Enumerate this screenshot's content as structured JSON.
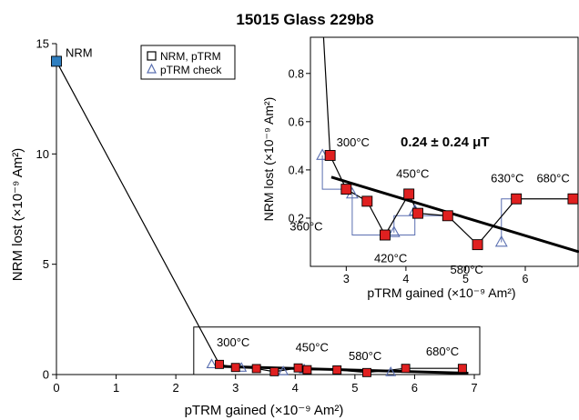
{
  "chart_data": [
    {
      "type": "scatter",
      "title": "15015 Glass 229b8",
      "xlabel": "pTRM gained (×10⁻⁹ Am²)",
      "ylabel": "NRM lost (×10⁻⁹ Am²)",
      "xlim": [
        0,
        7
      ],
      "ylim": [
        0,
        15
      ],
      "x_ticks": [
        "0",
        "1",
        "2",
        "3",
        "4",
        "5",
        "6",
        "7"
      ],
      "y_ticks": [
        "0",
        "5",
        "10",
        "15"
      ],
      "legend": {
        "placement": "top-center",
        "entries": [
          "NRM, pTRM",
          "pTRM check"
        ]
      },
      "series": [
        {
          "name": "NRM, pTRM",
          "x": [
            0.0,
            2.73,
            3.0,
            3.35,
            3.65,
            4.05,
            4.2,
            4.7,
            5.2,
            5.85,
            6.8
          ],
          "y": [
            14.2,
            0.46,
            0.32,
            0.27,
            0.13,
            0.3,
            0.22,
            0.21,
            0.09,
            0.28,
            0.28
          ],
          "marker": "square",
          "color": "#e02020",
          "first_point_color": "#2f7fc0"
        },
        {
          "name": "pTRM check",
          "x": [
            2.6,
            3.1,
            3.8,
            4.15,
            5.6
          ],
          "y": [
            0.46,
            0.3,
            0.14,
            0.23,
            0.1
          ],
          "marker": "triangle",
          "color": "#5a6fb0"
        }
      ],
      "fit_line": {
        "x": [
          2.75,
          6.9
        ],
        "y": [
          0.37,
          0.06
        ],
        "color": "#000000"
      },
      "annotations": [
        {
          "text": "NRM",
          "x": 0.0,
          "y": 14.2
        },
        {
          "text": "300°C",
          "x": 2.73,
          "y": 0.46
        },
        {
          "text": "450°C",
          "x": 4.05,
          "y": 0.3
        },
        {
          "text": "580°C",
          "x": 5.2,
          "y": 0.09
        },
        {
          "text": "680°C",
          "x": 6.8,
          "y": 0.28
        }
      ],
      "zoom_box": {
        "x": [
          2.3,
          7.0
        ],
        "y": [
          0.0,
          1.0
        ]
      }
    },
    {
      "type": "scatter",
      "title": "",
      "xlabel": "pTRM gained (×10⁻⁹ Am²)",
      "ylabel": "NRM lost (×10⁻⁹ Am²)",
      "xlim": [
        2.4,
        6.9
      ],
      "ylim": [
        0,
        0.95
      ],
      "x_ticks": [
        "3",
        "4",
        "5",
        "6"
      ],
      "y_ticks": [
        "0.2",
        "0.4",
        "0.6",
        "0.8"
      ],
      "result": "0.24 ± 0.24 μT",
      "series": [
        {
          "name": "NRM, pTRM",
          "x": [
            2.73,
            3.0,
            3.35,
            3.65,
            4.05,
            4.2,
            4.7,
            5.2,
            5.85,
            6.8
          ],
          "y": [
            0.46,
            0.32,
            0.27,
            0.13,
            0.3,
            0.22,
            0.21,
            0.09,
            0.28,
            0.28
          ],
          "marker": "square",
          "color": "#e02020"
        },
        {
          "name": "pTRM check",
          "x": [
            2.6,
            3.1,
            3.8,
            4.15,
            5.6
          ],
          "y": [
            0.46,
            0.3,
            0.14,
            0.23,
            0.1
          ],
          "marker": "triangle",
          "color": "#5a6fb0"
        }
      ],
      "check_links": [
        {
          "from": [
            2.6,
            0.46
          ],
          "via": [
            2.6,
            0.32
          ],
          "to": [
            3.0,
            0.32
          ]
        },
        {
          "from": [
            3.1,
            0.3
          ],
          "via": [
            3.1,
            0.13
          ],
          "to": [
            3.65,
            0.13
          ]
        },
        {
          "from": [
            3.8,
            0.14
          ],
          "via": [
            3.8,
            0.21
          ],
          "to": [
            4.7,
            0.21
          ]
        },
        {
          "from": [
            4.15,
            0.23
          ],
          "via": [
            4.15,
            0.13
          ],
          "to": [
            3.65,
            0.13
          ]
        },
        {
          "from": [
            5.6,
            0.1
          ],
          "via": [
            5.6,
            0.28
          ],
          "to": [
            5.85,
            0.28
          ]
        }
      ],
      "fit_line": {
        "x": [
          2.75,
          6.9
        ],
        "y": [
          0.37,
          0.06
        ],
        "color": "#000000"
      },
      "annotations": [
        {
          "text": "300°C",
          "x": 2.73,
          "y": 0.46
        },
        {
          "text": "360°C",
          "x": 3.35,
          "y": 0.27
        },
        {
          "text": "420°C",
          "x": 3.65,
          "y": 0.13
        },
        {
          "text": "450°C",
          "x": 4.05,
          "y": 0.3
        },
        {
          "text": "580°C",
          "x": 5.2,
          "y": 0.09
        },
        {
          "text": "630°C",
          "x": 5.85,
          "y": 0.28
        },
        {
          "text": "680°C",
          "x": 6.8,
          "y": 0.28
        }
      ]
    }
  ]
}
